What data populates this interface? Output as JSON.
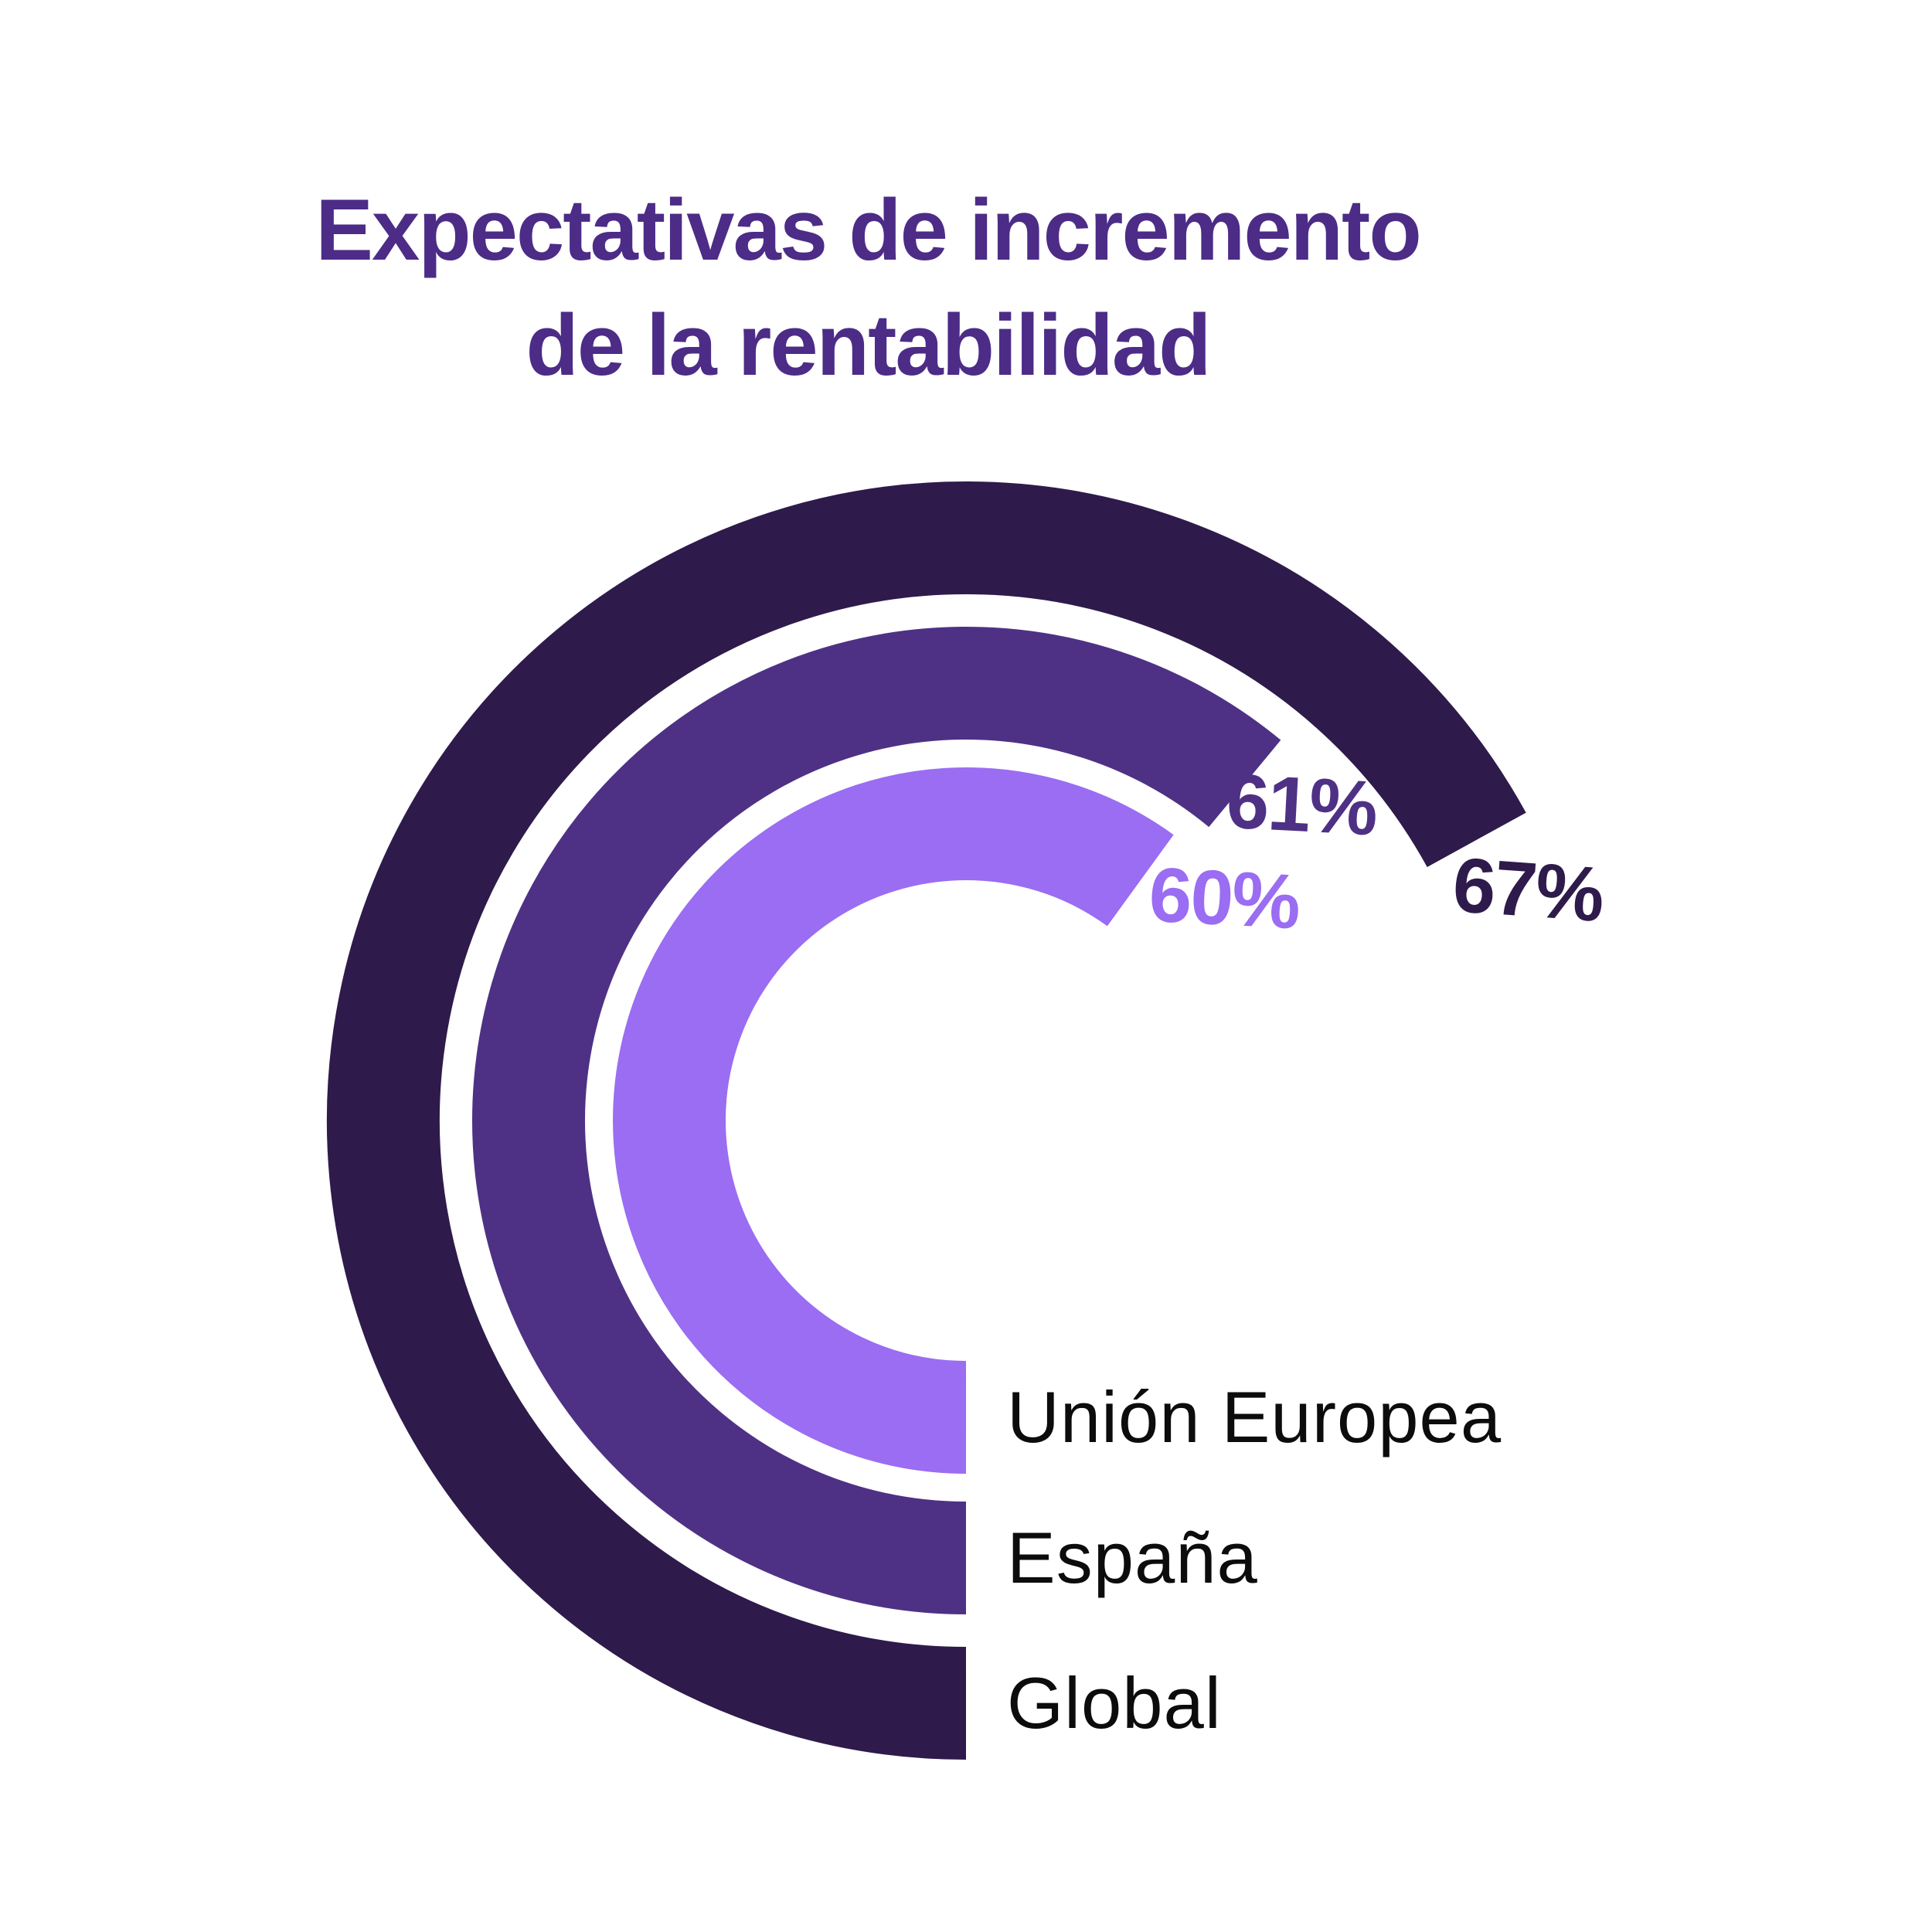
{
  "title": {
    "line1": "Expectativas de incremento",
    "line2": "de la rentabilidad"
  },
  "colors": {
    "background": "#FFFFFF",
    "title_text": "#4C2C87",
    "legend_text": "#0C0C0C",
    "ring_inner": "#9A6DF2",
    "ring_middle": "#4E3185",
    "ring_outer": "#2E1A4B"
  },
  "chart_data": {
    "type": "radial_bar",
    "title": "Expectativas de incremento de la rentabilidad",
    "unit": "%",
    "max_value": 100,
    "start_angle_deg": 270,
    "direction": "clockwise",
    "grid": false,
    "legend_position": "bottom-right",
    "series": [
      {
        "ring": "inner",
        "label": "Unión Europea",
        "value": 60,
        "value_label": "60%",
        "color": "#9A6DF2"
      },
      {
        "ring": "middle",
        "label": "España",
        "value": 61,
        "value_label": "61%",
        "color": "#4E3185"
      },
      {
        "ring": "outer",
        "label": "Global",
        "value": 67,
        "value_label": "67%",
        "color": "#2E1A4B"
      }
    ]
  }
}
